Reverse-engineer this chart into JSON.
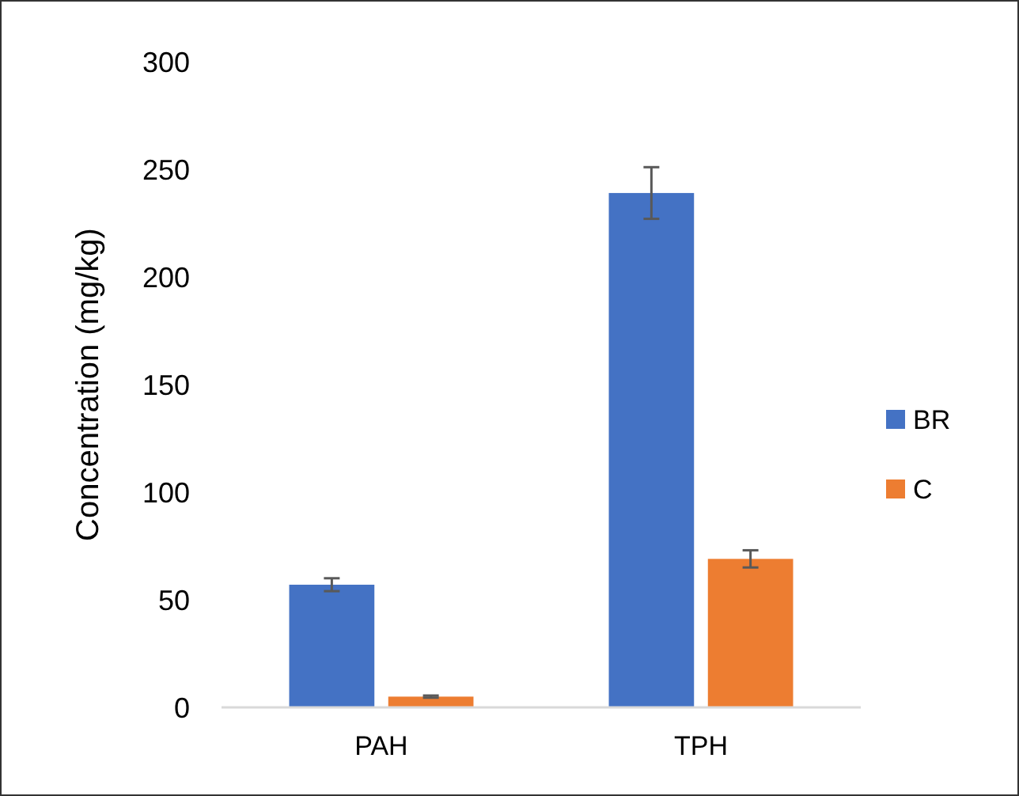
{
  "chart_data": {
    "type": "bar",
    "ylabel": "Concentration (mg/kg)",
    "categories": [
      "PAH",
      "TPH"
    ],
    "series": [
      {
        "name": "BR",
        "color": "#4472c4",
        "values": [
          57,
          239
        ],
        "errors": [
          3,
          12
        ]
      },
      {
        "name": "C",
        "color": "#ed7d31",
        "values": [
          5,
          69
        ],
        "errors": [
          0.5,
          4
        ]
      }
    ],
    "ylim": [
      0,
      300
    ],
    "yticks": [
      0,
      50,
      100,
      150,
      200,
      250,
      300
    ],
    "grid": false,
    "legend": "right"
  }
}
